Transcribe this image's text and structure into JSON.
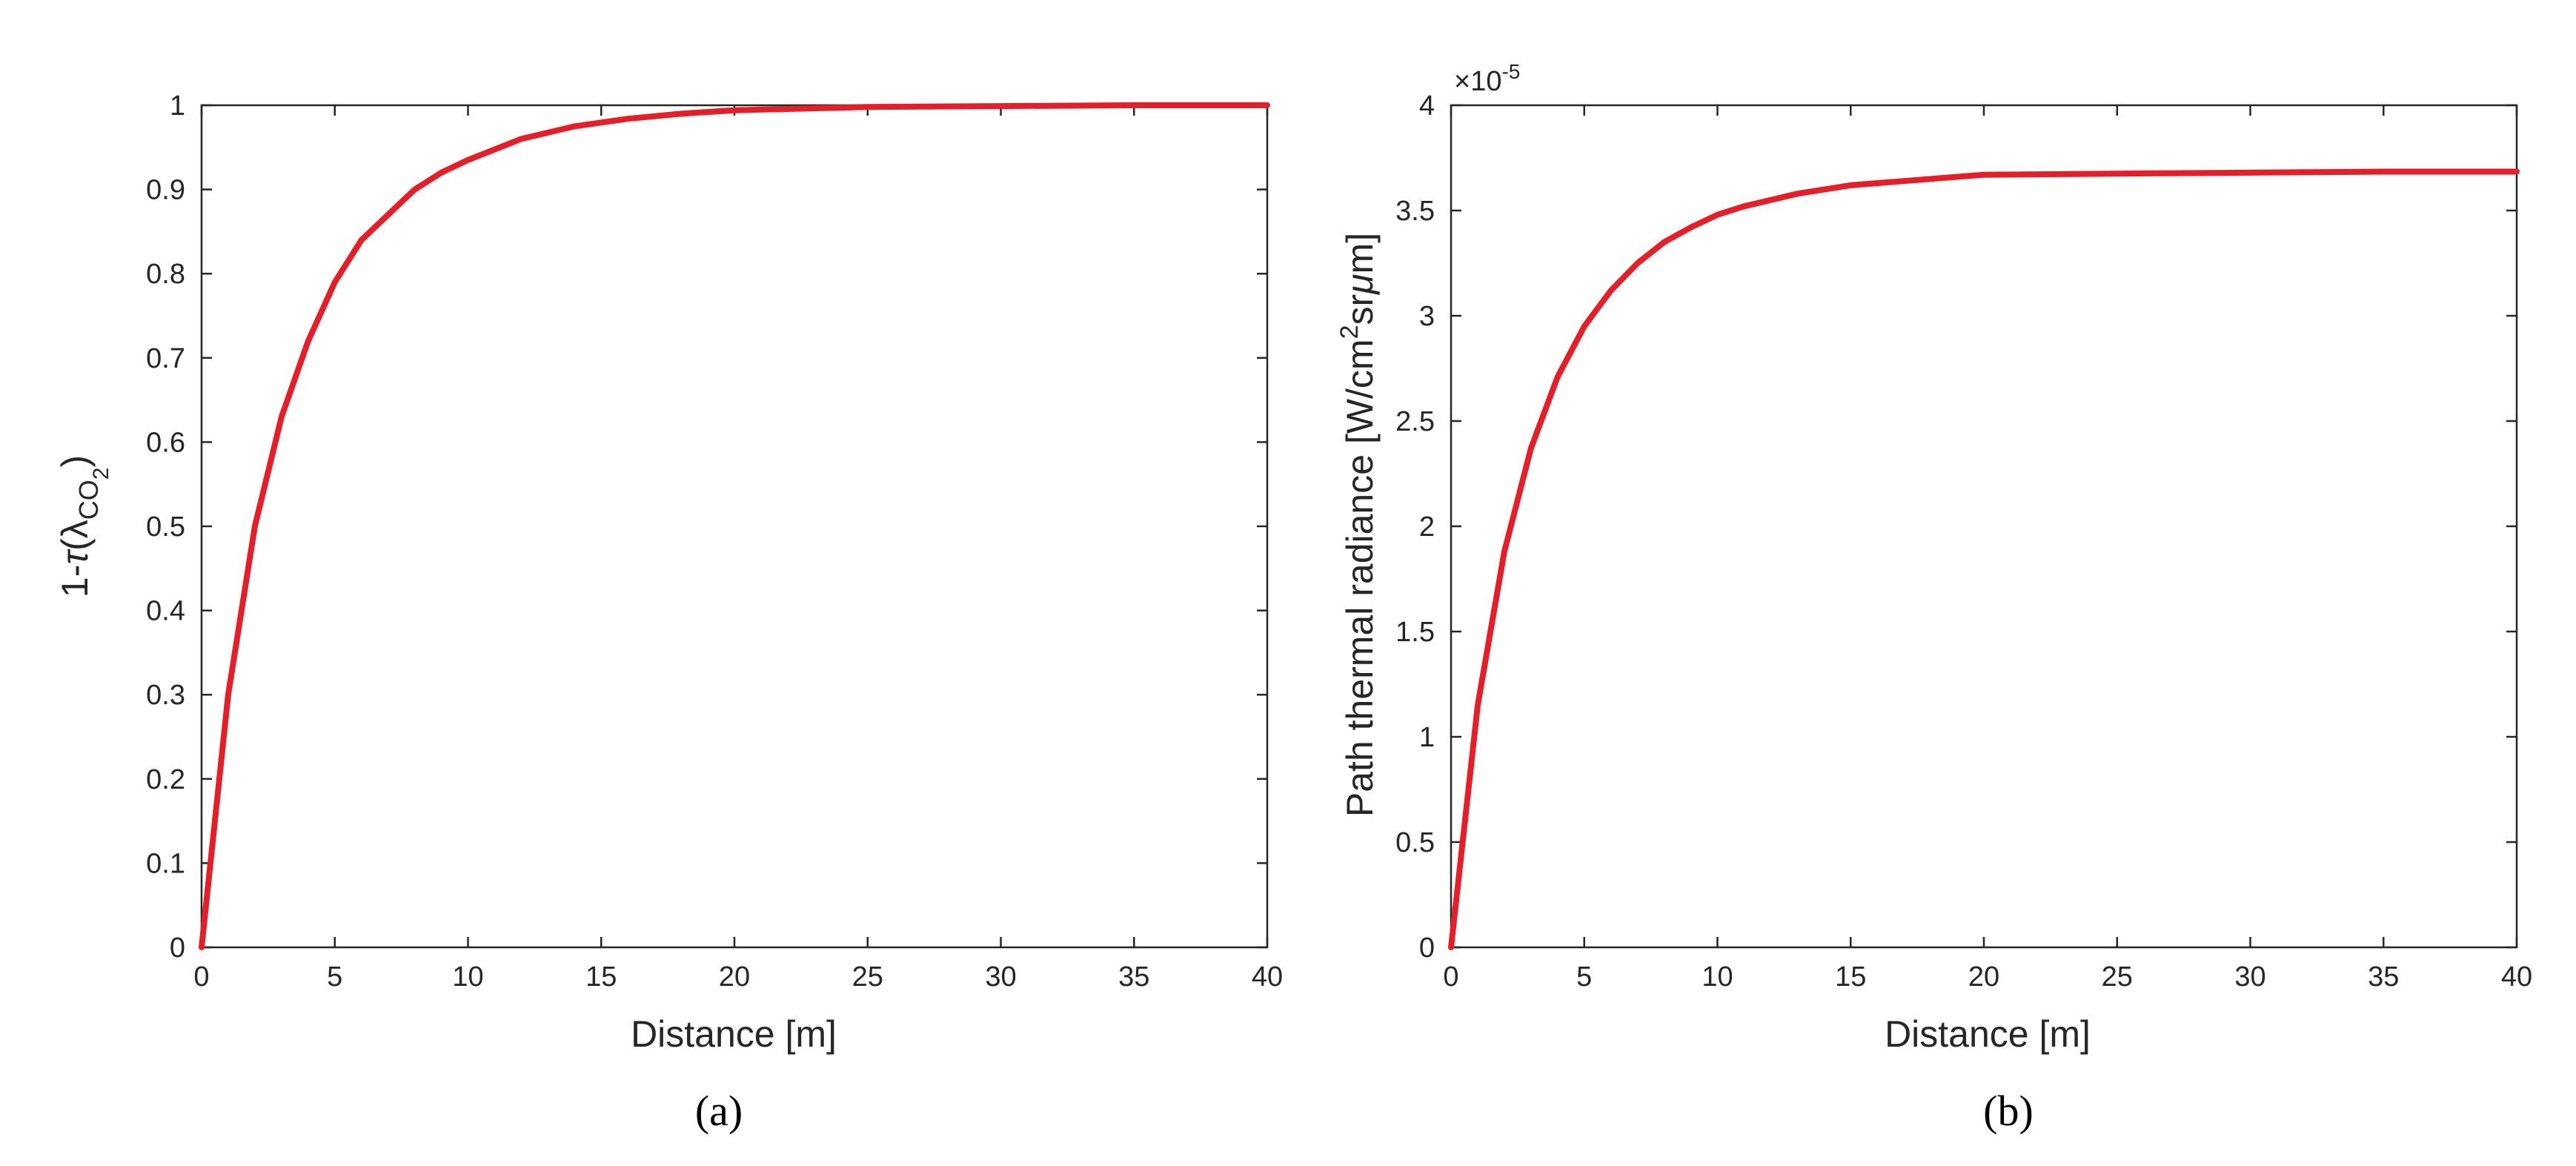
{
  "colors": {
    "line": "#e3202a",
    "axis": "#262626",
    "background": "#ffffff"
  },
  "chart_data": [
    {
      "type": "line",
      "caption": "(a)",
      "title": "",
      "xlabel": "Distance [m]",
      "ylabel": "1-τ(λCO2)",
      "ylabel_parts": {
        "prefix": "1-",
        "tau": "τ",
        "open": "(",
        "lambda": "λ",
        "sub": "CO",
        "subsub": "2",
        "close": ")"
      },
      "xlim": [
        0,
        40
      ],
      "ylim": [
        0,
        1
      ],
      "xticks": [
        0,
        5,
        10,
        15,
        20,
        25,
        30,
        35,
        40
      ],
      "xtick_labels": [
        "0",
        "5",
        "10",
        "15",
        "20",
        "25",
        "30",
        "35",
        "40"
      ],
      "yticks": [
        0,
        0.1,
        0.2,
        0.3,
        0.4,
        0.5,
        0.6,
        0.7,
        0.8,
        0.9,
        1
      ],
      "ytick_labels": [
        "0",
        "0.1",
        "0.2",
        "0.3",
        "0.4",
        "0.5",
        "0.6",
        "0.7",
        "0.8",
        "0.9",
        "1"
      ],
      "grid": false,
      "series": [
        {
          "x": [
            0,
            1,
            2,
            3,
            4,
            5,
            6,
            7,
            8,
            9,
            10,
            12,
            14,
            16,
            18,
            20,
            25,
            30,
            35,
            40
          ],
          "y": [
            0,
            0.3,
            0.5,
            0.63,
            0.72,
            0.79,
            0.84,
            0.87,
            0.9,
            0.92,
            0.935,
            0.96,
            0.975,
            0.984,
            0.99,
            0.994,
            0.998,
            0.999,
            1.0,
            1.0
          ]
        }
      ]
    },
    {
      "type": "line",
      "caption": "(b)",
      "title": "",
      "xlabel": "Distance [m]",
      "ylabel": "Path thermal radiance [W/cm2srμm]",
      "ylabel_parts": {
        "main": "Path thermal radiance [W/cm",
        "sup": "2",
        "sr": "sr",
        "mu": "μ",
        "end": "m]"
      },
      "exponent_label": {
        "times": "×",
        "base": "10",
        "power": "-5"
      },
      "xlim": [
        0,
        40
      ],
      "ylim": [
        0,
        4
      ],
      "xticks": [
        0,
        5,
        10,
        15,
        20,
        25,
        30,
        35,
        40
      ],
      "xtick_labels": [
        "0",
        "5",
        "10",
        "15",
        "20",
        "25",
        "30",
        "35",
        "40"
      ],
      "yticks": [
        0,
        0.5,
        1,
        1.5,
        2,
        2.5,
        3,
        3.5,
        4
      ],
      "ytick_labels": [
        "0",
        "0.5",
        "1",
        "1.5",
        "2",
        "2.5",
        "3",
        "3.5",
        "4"
      ],
      "grid": false,
      "series": [
        {
          "x": [
            0,
            1,
            2,
            3,
            4,
            5,
            6,
            7,
            8,
            9,
            10,
            11,
            13,
            15,
            17,
            20,
            25,
            30,
            35,
            40
          ],
          "y": [
            0,
            1.15,
            1.88,
            2.37,
            2.71,
            2.95,
            3.12,
            3.25,
            3.35,
            3.42,
            3.48,
            3.52,
            3.58,
            3.62,
            3.64,
            3.67,
            3.675,
            3.68,
            3.685,
            3.685
          ]
        }
      ]
    }
  ]
}
